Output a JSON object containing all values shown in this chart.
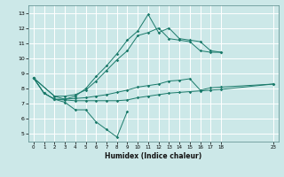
{
  "xlabel": "Humidex (Indice chaleur)",
  "bg_color": "#cce8e8",
  "grid_color": "#ffffff",
  "line_color": "#1a7a6a",
  "xlim": [
    -0.5,
    23.5
  ],
  "ylim": [
    4.5,
    13.5
  ],
  "xticks": [
    0,
    1,
    2,
    3,
    4,
    5,
    6,
    7,
    8,
    9,
    10,
    11,
    12,
    13,
    14,
    15,
    16,
    17,
    18,
    23
  ],
  "yticks": [
    5,
    6,
    7,
    8,
    9,
    10,
    11,
    12,
    13
  ],
  "lines": [
    {
      "x": [
        0,
        1,
        2,
        3,
        4,
        5,
        6,
        7,
        8,
        9
      ],
      "y": [
        8.7,
        7.7,
        7.3,
        7.1,
        6.6,
        6.6,
        5.8,
        5.3,
        4.8,
        6.5
      ]
    },
    {
      "x": [
        0,
        1,
        2,
        3,
        4,
        5,
        6,
        7,
        8,
        9,
        10,
        11,
        12,
        13,
        14,
        15,
        16,
        17,
        18,
        23
      ],
      "y": [
        8.7,
        7.7,
        7.3,
        7.25,
        7.2,
        7.2,
        7.2,
        7.2,
        7.2,
        7.25,
        7.4,
        7.5,
        7.6,
        7.7,
        7.75,
        7.8,
        7.85,
        7.9,
        7.95,
        8.3
      ]
    },
    {
      "x": [
        0,
        1,
        2,
        3,
        4,
        5,
        6,
        7,
        8,
        9,
        10,
        11,
        12,
        13,
        14,
        15,
        16,
        17,
        18,
        23
      ],
      "y": [
        8.7,
        7.7,
        7.3,
        7.3,
        7.35,
        7.4,
        7.5,
        7.6,
        7.75,
        7.9,
        8.1,
        8.2,
        8.3,
        8.5,
        8.55,
        8.65,
        7.9,
        8.05,
        8.1,
        8.3
      ]
    },
    {
      "x": [
        0,
        2,
        3,
        4,
        5,
        6,
        7,
        8,
        9,
        10,
        11,
        12,
        13,
        14,
        15,
        16,
        17,
        18
      ],
      "y": [
        8.7,
        7.5,
        7.3,
        7.5,
        8.0,
        8.8,
        9.5,
        10.3,
        11.2,
        11.8,
        12.9,
        11.7,
        12.0,
        11.3,
        11.2,
        11.1,
        10.5,
        10.4
      ]
    },
    {
      "x": [
        0,
        2,
        3,
        4,
        5,
        6,
        7,
        8,
        9,
        10,
        11,
        12,
        13,
        14,
        15,
        16,
        17,
        18
      ],
      "y": [
        8.7,
        7.5,
        7.5,
        7.6,
        7.9,
        8.5,
        9.2,
        9.9,
        10.5,
        11.5,
        11.7,
        12.0,
        11.3,
        11.2,
        11.1,
        10.5,
        10.4,
        10.4
      ]
    }
  ]
}
